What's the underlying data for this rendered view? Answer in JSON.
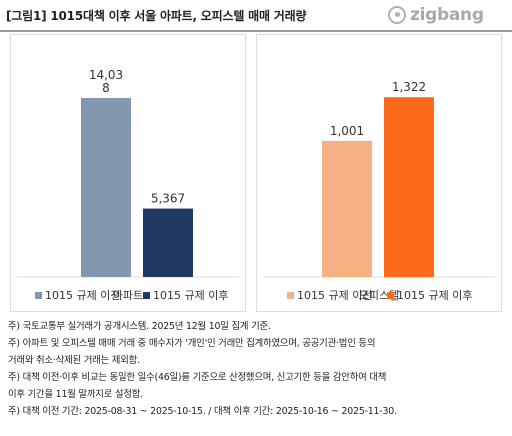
{
  "header": {
    "title": "[그림1]  1015대책 이후 서울  아파트, 오피스텔 매매 거래량",
    "logo_text": "zigbang"
  },
  "chart_data": [
    {
      "type": "bar",
      "categories": [
        "아파트"
      ],
      "series": [
        {
          "name": "1015 규제 이전",
          "values": [
            14038
          ],
          "label": "14,03\n8",
          "color": "#8497b0"
        },
        {
          "name": "1015 규제 이후",
          "values": [
            5367
          ],
          "label": "5,367",
          "color": "#203864"
        }
      ],
      "ylim": [
        0,
        16000
      ],
      "legend": "bottom",
      "grid": false
    },
    {
      "type": "bar",
      "categories": [
        "오피스텔"
      ],
      "series": [
        {
          "name": "1015 규제 이전",
          "values": [
            1001
          ],
          "label": "1,001",
          "color": "#f4b183"
        },
        {
          "name": "1015 규제 이후",
          "values": [
            1322
          ],
          "label": "1,322",
          "color": "#ff6a1a"
        }
      ],
      "ylim": [
        0,
        1500
      ],
      "legend": "bottom",
      "grid": false
    }
  ],
  "notes": [
    "주) 국토교통부 실거래가 공개시스템. 2025년 12월 10일 집계 기준.",
    "주) 아파트 및 오피스텔 매매 거래 중 매수자가 '개인'인 거래만 집계하였으며, 공공기관·법인 등의",
    "거래와 취소·삭제된 거래는 제외함.",
    "주) 대책 이전·이후 비교는 동일한 일수(46일)를 기준으로 산정했으며, 신고기한 등을 감안하여 대책",
    "이후 기간을 11월 말까지로 설정함.",
    "주) 대책 이전 기간: 2025-08-31 ~ 2025-10-15. / 대책 이후 기간: 2025-10-16 ~ 2025-11-30."
  ]
}
